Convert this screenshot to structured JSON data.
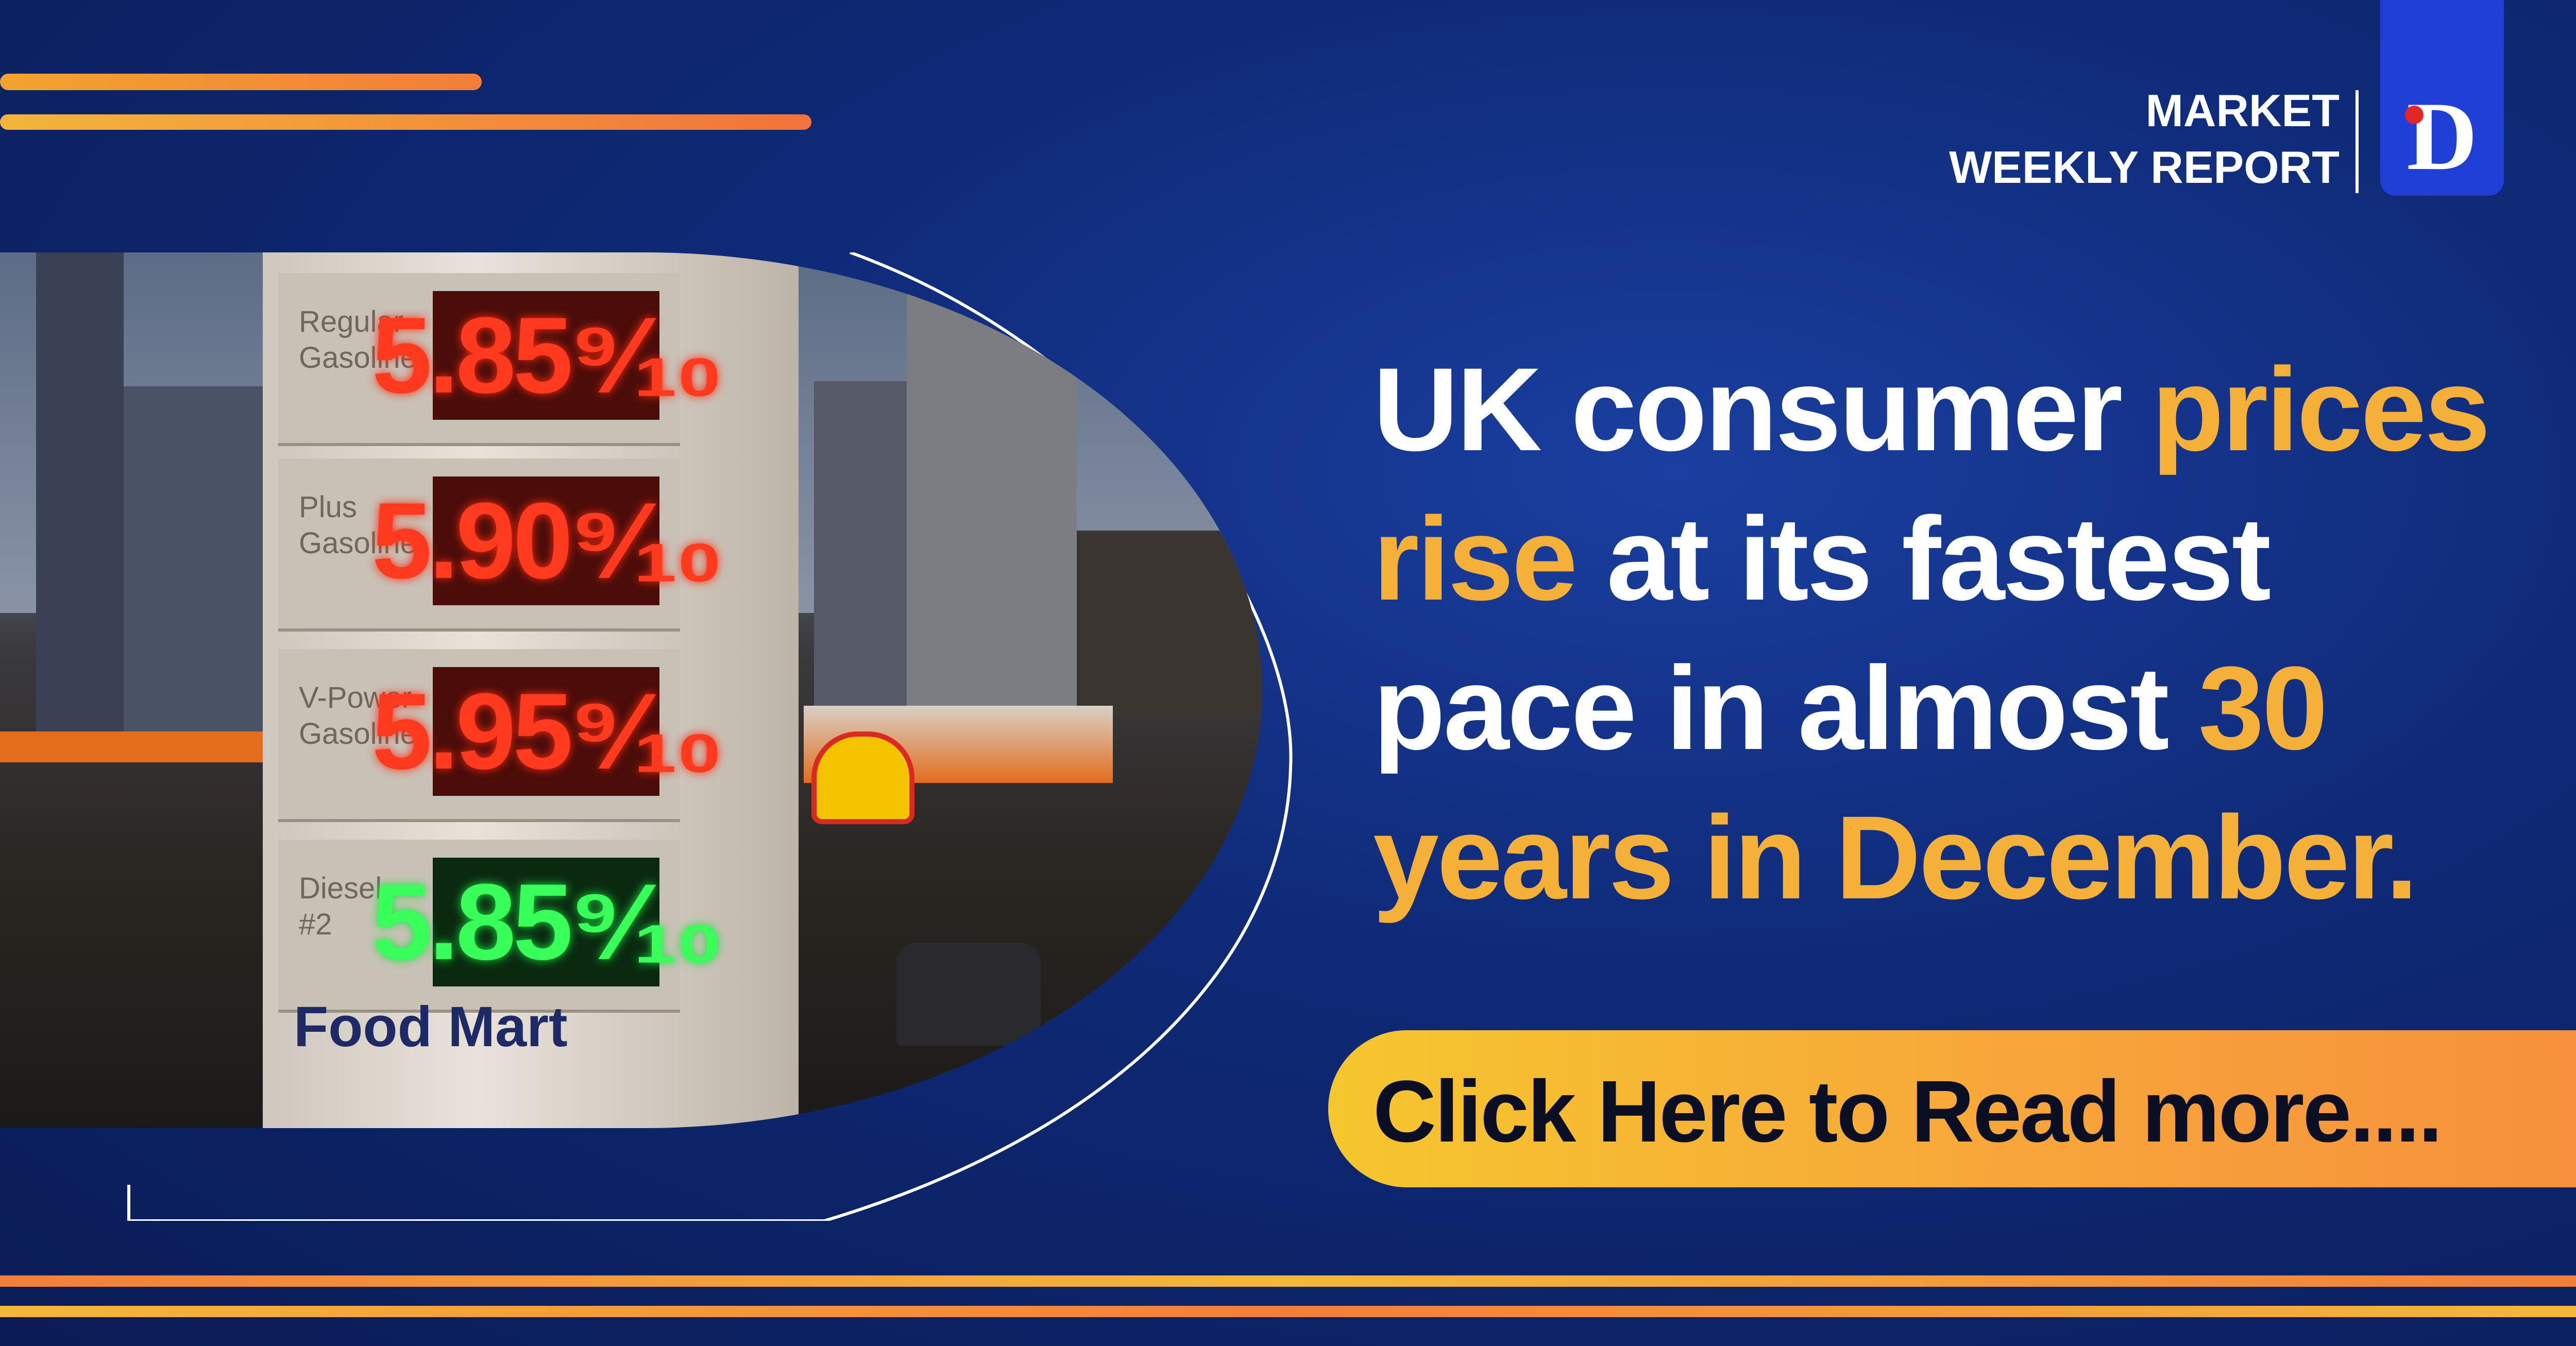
{
  "report": {
    "line1": "MARKET",
    "line2": "WEEKLY REPORT"
  },
  "logo": {
    "letter": "D"
  },
  "photo": {
    "prices": [
      {
        "grade": "Regular Gasoline",
        "price": "5.85⁹⁄₁₀"
      },
      {
        "grade": "Plus Gasoline",
        "price": "5.90⁹⁄₁₀"
      },
      {
        "grade": "V-Power Gasoline",
        "price": "5.95⁹⁄₁₀"
      },
      {
        "grade": "Diesel #2",
        "price": "5.85⁹⁄₁₀"
      }
    ],
    "store_sign": "Food Mart"
  },
  "headline": {
    "p1": "UK consumer ",
    "h1": "prices",
    "h2": "rise",
    "p2": " at its fastest pace in almost ",
    "h3": "30 years in December."
  },
  "cta": {
    "label": "Click Here to Read more...."
  },
  "colors": {
    "accent": "#f5b03a",
    "background": "#0f2a78",
    "logo": "#1f3fd6"
  }
}
